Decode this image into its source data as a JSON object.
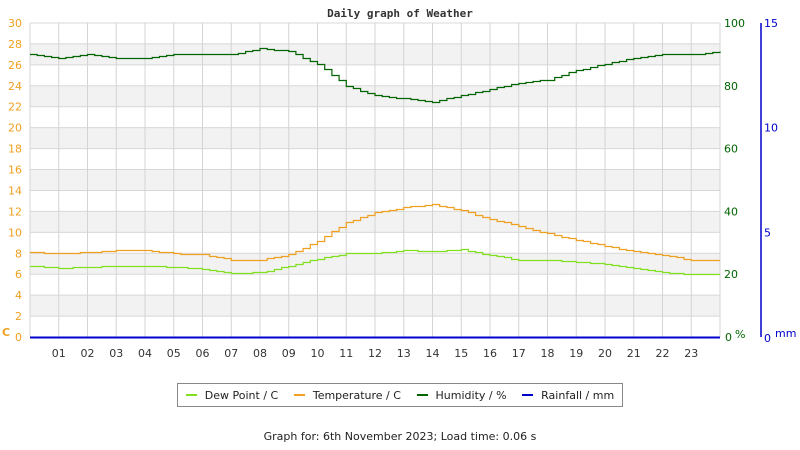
{
  "chart_data": {
    "type": "line",
    "title": "Daily graph of Weather",
    "xlabel": "",
    "x_ticks": [
      "01",
      "02",
      "03",
      "04",
      "05",
      "06",
      "07",
      "08",
      "09",
      "10",
      "11",
      "12",
      "13",
      "14",
      "15",
      "16",
      "17",
      "18",
      "19",
      "20",
      "21",
      "22",
      "23"
    ],
    "axes": {
      "left": {
        "label": "C",
        "ticks": [
          0,
          2,
          4,
          6,
          8,
          10,
          12,
          14,
          16,
          18,
          20,
          22,
          24,
          26,
          28,
          30
        ],
        "range": [
          0,
          30
        ],
        "color": "#f0a020"
      },
      "right1": {
        "label": "%",
        "ticks": [
          0,
          20,
          40,
          60,
          80,
          100
        ],
        "range": [
          0,
          100
        ],
        "color": "#006400"
      },
      "right2": {
        "label": "mm",
        "ticks": [
          0,
          5,
          10,
          15
        ],
        "range": [
          0,
          15
        ],
        "color": "#0000cc"
      }
    },
    "grid": true,
    "legend_position": "bottom",
    "x": [
      0,
      1,
      2,
      3,
      4,
      5,
      6,
      7,
      8,
      9,
      10,
      11,
      12,
      13,
      14,
      15,
      16,
      17,
      18,
      19,
      20,
      21,
      22,
      23,
      24
    ],
    "series": [
      {
        "name": "Dew Point / C",
        "color": "#80e020",
        "axis": "left",
        "values": [
          6.8,
          6.6,
          6.7,
          6.8,
          6.8,
          6.7,
          6.5,
          6.1,
          6.2,
          6.8,
          7.5,
          8.0,
          8.0,
          8.3,
          8.2,
          8.4,
          7.8,
          7.4,
          7.4,
          7.2,
          7.0,
          6.6,
          6.2,
          6.0,
          6.0
        ]
      },
      {
        "name": "Temperature / C",
        "color": "#f0a020",
        "axis": "left",
        "values": [
          8.1,
          8.0,
          8.1,
          8.3,
          8.3,
          8.0,
          7.9,
          7.4,
          7.4,
          7.9,
          9.2,
          11.0,
          11.9,
          12.4,
          12.7,
          12.1,
          11.3,
          10.6,
          9.9,
          9.3,
          8.7,
          8.2,
          7.8,
          7.4,
          7.4
        ]
      },
      {
        "name": "Humidity / %",
        "color": "#006400",
        "axis": "right1",
        "values": [
          90,
          89,
          90,
          89,
          89,
          90,
          90,
          90,
          92,
          91,
          87,
          80,
          77,
          76,
          75,
          77,
          79,
          81,
          82,
          85,
          87,
          89,
          90,
          90,
          91
        ]
      },
      {
        "name": "Rainfall / mm",
        "color": "#0000cc",
        "axis": "right2",
        "values": [
          0,
          0,
          0,
          0,
          0,
          0,
          0,
          0,
          0,
          0,
          0,
          0,
          0,
          0,
          0,
          0,
          0,
          0,
          0,
          0,
          0,
          0,
          0,
          0,
          0
        ]
      }
    ]
  },
  "legend": [
    {
      "label": "Dew Point / C",
      "color": "#80e020"
    },
    {
      "label": "Temperature / C",
      "color": "#f0a020"
    },
    {
      "label": "Humidity / %",
      "color": "#006400"
    },
    {
      "label": "Rainfall / mm",
      "color": "#0000cc"
    }
  ],
  "footer": "Graph for: 6th November 2023; Load time: 0.06 s"
}
